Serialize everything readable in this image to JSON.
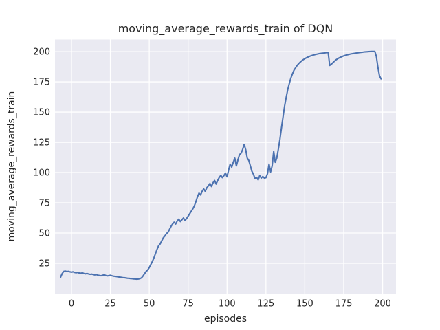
{
  "chart_data": {
    "type": "line",
    "title": "moving_average_rewards_train of DQN",
    "xlabel": "episodes",
    "ylabel": "moving_average_rewards_train",
    "x_ticks": [
      0,
      25,
      50,
      75,
      100,
      125,
      150,
      175,
      200
    ],
    "y_ticks": [
      25,
      50,
      75,
      100,
      125,
      150,
      175,
      200
    ],
    "xlim": [
      -10.6,
      208.6
    ],
    "ylim": [
      0,
      210
    ],
    "grid": true,
    "legend_position": "none",
    "colors": {
      "line": "#4c72b0",
      "plot_background": "#eaeaf2",
      "gridline": "#ffffff",
      "figure_background": "#ffffff",
      "text": "#262626"
    },
    "series": [
      {
        "name": "moving_average_rewards_train",
        "x_start": -7,
        "x_step": 1,
        "y": [
          13.5,
          16.5,
          18.3,
          18.6,
          18.2,
          18.4,
          18.0,
          17.7,
          18.0,
          17.5,
          17.2,
          17.5,
          17.0,
          16.8,
          17.1,
          16.6,
          16.3,
          16.6,
          16.2,
          15.9,
          16.1,
          15.7,
          15.4,
          15.7,
          15.2,
          15.0,
          14.7,
          15.1,
          15.5,
          15.0,
          14.6,
          14.8,
          15.1,
          14.7,
          14.4,
          14.2,
          14.0,
          13.8,
          13.6,
          13.4,
          13.2,
          13.1,
          12.9,
          12.7,
          12.6,
          12.4,
          12.3,
          12.1,
          12.0,
          11.9,
          12.0,
          12.3,
          13.0,
          14.5,
          16.5,
          18.3,
          19.5,
          21.5,
          24.0,
          26.5,
          29.5,
          33.0,
          36.5,
          39.5,
          41.0,
          43.5,
          46.0,
          47.5,
          49.5,
          50.5,
          53.0,
          55.5,
          57.5,
          59.0,
          57.5,
          60.0,
          61.5,
          59.5,
          61.0,
          62.5,
          60.5,
          62.0,
          64.0,
          66.0,
          68.0,
          70.0,
          72.5,
          76.0,
          80.0,
          83.0,
          81.5,
          84.5,
          86.5,
          84.5,
          87.5,
          89.0,
          91.0,
          88.5,
          91.5,
          93.5,
          90.5,
          93.5,
          96.0,
          97.7,
          95.8,
          97.5,
          99.6,
          96.5,
          102.0,
          107.0,
          104.5,
          108.5,
          111.9,
          105.5,
          110.5,
          114.8,
          116.0,
          119.0,
          123.3,
          119.0,
          112.0,
          110.0,
          105.5,
          101.0,
          98.5,
          95.0,
          96.0,
          94.0,
          97.5,
          95.5,
          96.8,
          95.5,
          95.8,
          99.0,
          107.0,
          100.5,
          105.5,
          117.5,
          108.5,
          112.0,
          119.5,
          127.5,
          137.0,
          146.0,
          155.0,
          162.0,
          168.5,
          173.5,
          178.0,
          181.5,
          184.5,
          186.5,
          188.5,
          190.0,
          191.3,
          192.4,
          193.4,
          194.2,
          194.9,
          195.5,
          196.1,
          196.6,
          197.0,
          197.4,
          197.7,
          198.0,
          198.3,
          198.5,
          198.7,
          198.8,
          199.0,
          199.2,
          199.4,
          188.6,
          189.5,
          190.8,
          192.0,
          193.2,
          194.0,
          194.8,
          195.4,
          196.0,
          196.5,
          196.9,
          197.3,
          197.6,
          197.9,
          198.2,
          198.4,
          198.6,
          198.8,
          199.0,
          199.2,
          199.4,
          199.5,
          199.7,
          199.8,
          199.9,
          200.0,
          200.1,
          200.2,
          200.2,
          200.2,
          196.0,
          187.0,
          180.0,
          177.5
        ]
      }
    ]
  }
}
